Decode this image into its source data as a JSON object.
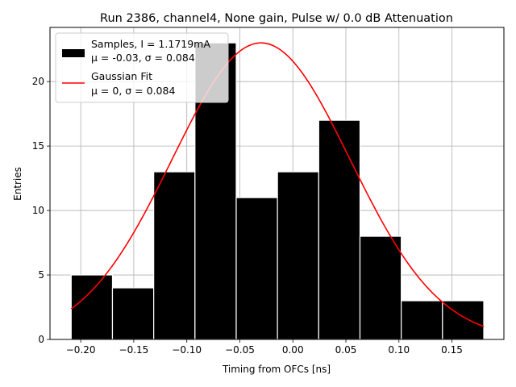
{
  "chart_data": {
    "type": "bar",
    "title": "Run 2386, channel4, None gain, Pulse w/ 0.0 dB Attenuation",
    "xlabel": "Timing from OFCs [ns]",
    "ylabel": "Entries",
    "xlim": [
      -0.229,
      0.199
    ],
    "ylim": [
      0,
      24.2
    ],
    "grid": true,
    "legend_position": "top-left",
    "xticks": [
      -0.2,
      -0.15,
      -0.1,
      -0.05,
      0.0,
      0.05,
      0.1,
      0.15
    ],
    "xtick_labels": [
      "−0.20",
      "−0.15",
      "−0.10",
      "−0.05",
      "0.00",
      "0.05",
      "0.10",
      "0.15"
    ],
    "yticks": [
      0,
      5,
      10,
      15,
      20
    ],
    "ytick_labels": [
      "0",
      "5",
      "10",
      "15",
      "20"
    ],
    "bin_edges": [
      -0.209,
      -0.1701,
      -0.1312,
      -0.0923,
      -0.0534,
      -0.0145,
      0.0244,
      0.0633,
      0.1022,
      0.1411,
      0.18
    ],
    "values": [
      5,
      4,
      13,
      23,
      11,
      13,
      17,
      8,
      3,
      3
    ],
    "bar_color": "#000000",
    "bar_edge_color": "#ffffff",
    "fit": {
      "mu": -0.03,
      "sigma": 0.084,
      "amplitude": 23.0,
      "x_range": [
        -0.209,
        0.18
      ],
      "color": "#ff0000"
    },
    "legend": [
      {
        "type": "patch",
        "color": "#000000",
        "line1": "Samples, I = 1.1719mA",
        "line2": "μ = -0.03, σ = 0.084"
      },
      {
        "type": "line",
        "color": "#ff0000",
        "line1": "Gaussian Fit",
        "line2": "μ = 0, σ = 0.084"
      }
    ]
  }
}
